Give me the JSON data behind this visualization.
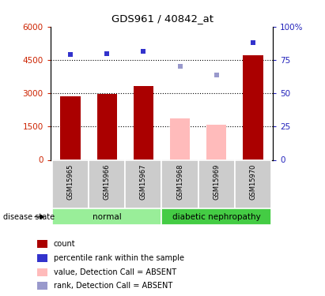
{
  "title": "GDS961 / 40842_at",
  "samples": [
    "GSM15965",
    "GSM15966",
    "GSM15967",
    "GSM15968",
    "GSM15969",
    "GSM15970"
  ],
  "bar_values": [
    2850,
    2960,
    3320,
    1870,
    1570,
    4720
  ],
  "bar_colors": [
    "#AA0000",
    "#AA0000",
    "#AA0000",
    "#FFBBBB",
    "#FFBBBB",
    "#AA0000"
  ],
  "rank_values": [
    79,
    80,
    81.5,
    70,
    64,
    88
  ],
  "rank_colors": [
    "#3333CC",
    "#3333CC",
    "#3333CC",
    "#9999CC",
    "#9999CC",
    "#3333CC"
  ],
  "ylim_left": [
    0,
    6000
  ],
  "ylim_right": [
    0,
    100
  ],
  "yticks_left": [
    0,
    1500,
    3000,
    4500,
    6000
  ],
  "yticks_right": [
    0,
    25,
    50,
    75,
    100
  ],
  "ytick_labels_left": [
    "0",
    "1500",
    "3000",
    "4500",
    "6000"
  ],
  "ytick_labels_right": [
    "0",
    "25",
    "50",
    "75",
    "100%"
  ],
  "normal_label": "normal",
  "diabetic_label": "diabetic nephropathy",
  "disease_state_label": "disease state",
  "legend_items": [
    {
      "label": "count",
      "color": "#AA0000"
    },
    {
      "label": "percentile rank within the sample",
      "color": "#3333CC"
    },
    {
      "label": "value, Detection Call = ABSENT",
      "color": "#FFBBBB"
    },
    {
      "label": "rank, Detection Call = ABSENT",
      "color": "#9999CC"
    }
  ],
  "normal_bg": "#99EE99",
  "diabetic_bg": "#44CC44",
  "sample_bg": "#CCCCCC",
  "left_color": "#CC2200",
  "right_color": "#2222BB"
}
